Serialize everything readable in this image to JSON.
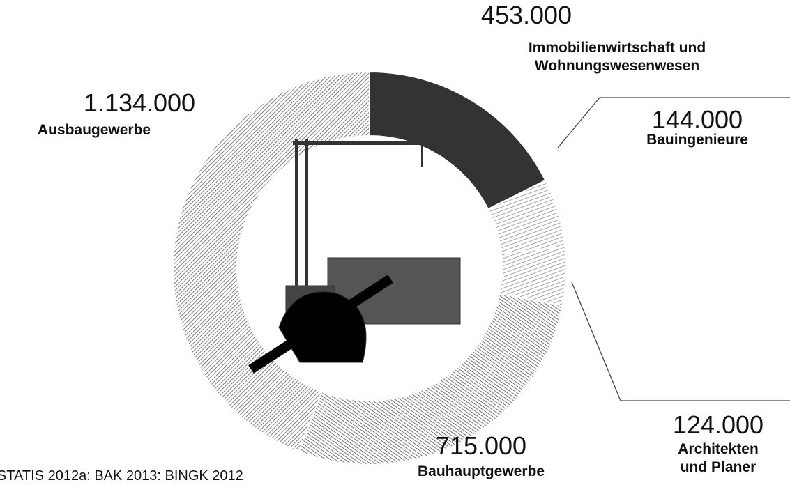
{
  "chart_data": {
    "type": "donut",
    "categories": [
      "Immobilienwirtschaft und Wohnungswesenwesen",
      "Bauingenieure",
      "Architekten und Planer",
      "Bauhauptgewerbe",
      "Ausbaugewerbe"
    ],
    "values": [
      453000,
      144000,
      124000,
      715000,
      1134000
    ],
    "value_labels": [
      "453.000",
      "144.000",
      "124.000",
      "715.000",
      "1.134.000"
    ],
    "colors": [
      "#333333",
      "#d8d8d8",
      "#d8d8d8",
      "#bdbdbd",
      "#c4c4c4"
    ],
    "source": "STATIS 2012a: BAK 2013: BINGK 2012"
  }
}
